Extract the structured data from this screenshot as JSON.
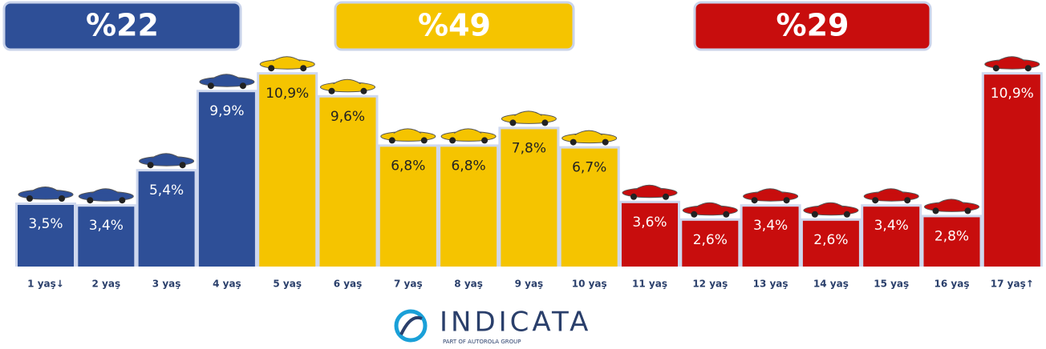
{
  "chart_data": {
    "type": "bar",
    "categories": [
      "1 yaş↓",
      "2 yaş",
      "3 yaş",
      "4 yaş",
      "5 yaş",
      "6 yaş",
      "7 yaş",
      "8 yaş",
      "9 yaş",
      "10 yaş",
      "11 yaş",
      "12 yaş",
      "13 yaş",
      "14 yaş",
      "15 yaş",
      "16 yaş",
      "17 yaş↑"
    ],
    "values": [
      3.5,
      3.4,
      5.4,
      9.9,
      10.9,
      9.6,
      6.8,
      6.8,
      7.8,
      6.7,
      3.6,
      2.6,
      3.4,
      2.6,
      3.4,
      2.8,
      10.9
    ],
    "value_labels": [
      "3,5%",
      "3,4%",
      "5,4%",
      "9,9%",
      "10,9%",
      "9,6%",
      "6,8%",
      "6,8%",
      "7,8%",
      "6,7%",
      "3,6%",
      "2,6%",
      "3,4%",
      "2,6%",
      "3,4%",
      "2,8%",
      "10,9%"
    ],
    "colors": [
      "#2e4f97",
      "#2e4f97",
      "#2e4f97",
      "#2e4f97",
      "#f5c400",
      "#f5c400",
      "#f5c400",
      "#f5c400",
      "#f5c400",
      "#f5c400",
      "#c80d0d",
      "#c80d0d",
      "#c80d0d",
      "#c80d0d",
      "#c80d0d",
      "#c80d0d",
      "#c80d0d"
    ],
    "ylim": [
      0,
      11
    ],
    "groups": [
      {
        "label": "%22",
        "color": "#2e4f97"
      },
      {
        "label": "%49",
        "color": "#f5c400"
      },
      {
        "label": "%29",
        "color": "#c80d0d"
      }
    ],
    "logo": {
      "name": "INDICATA",
      "tagline": "PART OF AUTOROLA GROUP"
    }
  }
}
